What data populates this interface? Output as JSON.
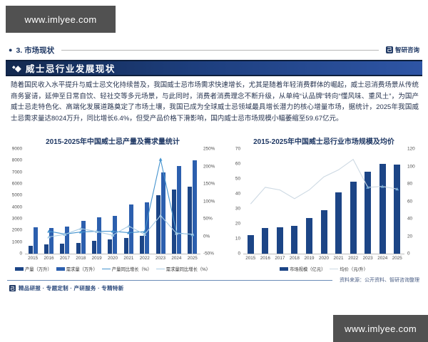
{
  "watermark": "www.imlyee.com",
  "header": {
    "section": "3. 市场现状",
    "brand": "智研咨询"
  },
  "banner": {
    "title": "威士忌行业发展现状"
  },
  "intro": "随着国民收入水平提升与威士忌文化持续普及，我国威士忌市场需求快速增长，尤其是随着年轻消费群体的崛起，威士忌消费场景从传统商务宴请，延伸至日常自饮、轻社交等多元场景，与此同时，消费者消费理念不断升级，从单纯“认品牌”转向“懂风味、重风土”，为国产威士忌走特色化、高端化发展道路奠定了市场土壤，我国已成为全球威士忌领域最具增长潜力的核心增量市场，据统计，2025年我国威士忌需求量达8024万升，同比增长6.4%，但受产品价格下滑影响，国内威士忌市场规模小幅萎缩至59.67亿元。",
  "source_note": "资料来源：公开资料、智研咨询整理",
  "footer": {
    "tagline": "精品研报 · 专题定制 · 产研服务 · 专精特新"
  },
  "chart_data": [
    {
      "type": "bar",
      "title": "2015-2025年中国威士忌产量及需求量统计",
      "categories": [
        "2015",
        "2016",
        "2017",
        "2018",
        "2019",
        "2020",
        "2021",
        "2022",
        "2023",
        "2024",
        "2025"
      ],
      "bar_series": [
        {
          "name": "产量（万升）",
          "color": "#1c4586",
          "axis": "left",
          "values": [
            700,
            800,
            850,
            950,
            1080,
            1230,
            1350,
            1520,
            5000,
            5500,
            5730
          ]
        },
        {
          "name": "需求量（万升）",
          "color": "#2c5fae",
          "axis": "left",
          "values": [
            2250,
            2200,
            2300,
            2800,
            3150,
            3250,
            4200,
            4400,
            7000,
            7540,
            8024
          ]
        }
      ],
      "line_series": [
        {
          "name": "产量同比增长（%）",
          "color": "#4694cf",
          "axis": "right",
          "values": [
            null,
            14,
            6,
            12,
            14,
            14,
            10,
            13,
            220,
            10,
            4
          ]
        },
        {
          "name": "需求量同比增长（%）",
          "color": "#a9cce4",
          "axis": "right",
          "values": [
            null,
            -2,
            5,
            22,
            13,
            3,
            29,
            5,
            59,
            8,
            6
          ]
        }
      ],
      "left_axis": {
        "min": 0,
        "max": 9000,
        "ticks": [
          "9000",
          "8000",
          "7000",
          "6000",
          "5000",
          "4000",
          "3000",
          "2000",
          "1000",
          "0"
        ]
      },
      "right_axis": {
        "min": -50,
        "max": 250,
        "ticks": [
          "250%",
          "200%",
          "150%",
          "100%",
          "50%",
          "0%",
          "-50%"
        ]
      },
      "grid": false,
      "legend_position": "bottom"
    },
    {
      "type": "bar",
      "title": "2015-2025年中国威士忌行业市场规模及均价",
      "categories": [
        "2015",
        "2016",
        "2017",
        "2018",
        "2019",
        "2020",
        "2021",
        "2022",
        "2023",
        "2024",
        "2025"
      ],
      "bar_series": [
        {
          "name": "市场规模（亿元）",
          "color": "#1c4586",
          "axis": "left",
          "values": [
            12.5,
            17,
            17.5,
            18.5,
            24,
            29,
            41,
            48,
            55,
            60,
            59.67
          ]
        }
      ],
      "line_series": [
        {
          "name": "均价（元/升）",
          "color": "#cdd9e3",
          "marker_color": "#76abd6",
          "axis": "right",
          "marker_indices": [
            8,
            9,
            10
          ],
          "values": [
            57,
            76,
            73,
            63,
            73,
            88,
            96,
            108,
            76,
            77,
            74
          ]
        }
      ],
      "left_axis": {
        "min": 0,
        "max": 70,
        "ticks": [
          "70",
          "60",
          "50",
          "40",
          "30",
          "20",
          "10",
          "0"
        ]
      },
      "right_axis": {
        "min": 0,
        "max": 120,
        "ticks": [
          "120",
          "100",
          "80",
          "60",
          "40",
          "20",
          "0"
        ]
      },
      "grid": false,
      "legend_position": "bottom"
    }
  ]
}
